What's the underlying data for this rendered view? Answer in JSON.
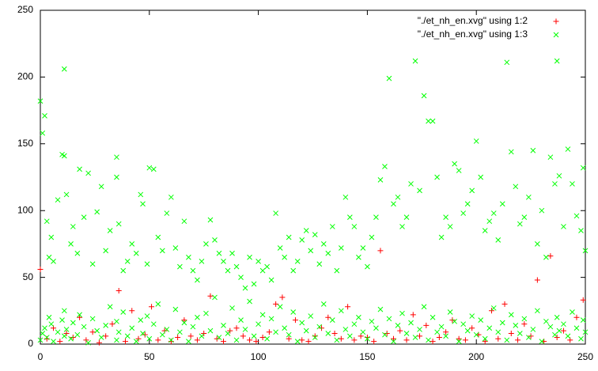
{
  "chart_data": {
    "type": "scatter",
    "xlim": [
      0,
      250
    ],
    "ylim": [
      0,
      250
    ],
    "xticks": [
      0,
      50,
      100,
      150,
      200,
      250
    ],
    "yticks": [
      0,
      50,
      100,
      150,
      200,
      250
    ],
    "legend": "top-right",
    "series": [
      {
        "name": "\"./et_nh_en.xvg\" using 1:2",
        "color": "#ff0000",
        "marker": "+",
        "x": [
          0,
          3,
          6,
          9,
          12,
          15,
          18,
          21,
          24,
          27,
          30,
          33,
          36,
          39,
          42,
          45,
          48,
          51,
          54,
          57,
          60,
          63,
          66,
          69,
          72,
          75,
          78,
          81,
          84,
          87,
          90,
          93,
          96,
          99,
          102,
          105,
          108,
          111,
          114,
          117,
          120,
          123,
          126,
          129,
          132,
          135,
          138,
          141,
          144,
          147,
          150,
          153,
          156,
          159,
          162,
          165,
          168,
          171,
          174,
          177,
          180,
          183,
          186,
          189,
          192,
          195,
          198,
          201,
          204,
          207,
          210,
          213,
          216,
          219,
          222,
          225,
          228,
          231,
          234,
          237,
          240,
          243,
          246,
          249
        ],
        "values": [
          56,
          4,
          12,
          2,
          8,
          5,
          20,
          3,
          9,
          1,
          6,
          15,
          40,
          2,
          25,
          4,
          7,
          28,
          3,
          10,
          2,
          5,
          18,
          6,
          3,
          8,
          36,
          4,
          2,
          10,
          12,
          6,
          3,
          2,
          5,
          9,
          30,
          35,
          4,
          18,
          3,
          2,
          6,
          12,
          20,
          8,
          4,
          28,
          3,
          6,
          5,
          2,
          70,
          8,
          4,
          10,
          3,
          22,
          6,
          14,
          2,
          5,
          9,
          18,
          4,
          3,
          12,
          7,
          2,
          25,
          4,
          30,
          8,
          3,
          15,
          6,
          48,
          2,
          66,
          5,
          10,
          3,
          20,
          33
        ]
      },
      {
        "name": "\"./et_nh_en.xvg\" using 1:3",
        "color": "#00ff00",
        "marker": "x",
        "x": [
          0,
          1,
          2,
          3,
          4,
          5,
          6,
          8,
          10,
          11,
          11,
          12,
          14,
          15,
          17,
          18,
          20,
          22,
          24,
          26,
          28,
          30,
          32,
          35,
          35,
          36,
          38,
          40,
          42,
          44,
          46,
          47,
          49,
          50,
          52,
          54,
          56,
          58,
          60,
          62,
          64,
          66,
          68,
          70,
          72,
          74,
          76,
          78,
          80,
          82,
          84,
          86,
          88,
          90,
          92,
          94,
          96,
          98,
          100,
          102,
          104,
          106,
          108,
          110,
          112,
          114,
          116,
          118,
          120,
          122,
          124,
          126,
          128,
          130,
          132,
          134,
          136,
          138,
          140,
          142,
          144,
          146,
          148,
          150,
          152,
          154,
          156,
          158,
          160,
          162,
          164,
          166,
          168,
          170,
          172,
          174,
          176,
          178,
          180,
          182,
          184,
          186,
          188,
          190,
          192,
          194,
          196,
          198,
          200,
          202,
          204,
          206,
          208,
          210,
          212,
          214,
          216,
          218,
          220,
          222,
          224,
          226,
          228,
          230,
          232,
          234,
          236,
          237,
          238,
          240,
          242,
          244,
          246,
          248,
          249,
          250,
          0,
          1,
          2,
          3,
          4,
          5,
          6,
          8,
          10,
          11,
          11,
          12,
          14,
          15,
          17,
          18,
          20,
          22,
          24,
          26,
          28,
          30,
          32,
          35,
          35,
          36,
          38,
          40,
          42,
          44,
          46,
          47,
          49,
          50,
          52,
          54,
          56,
          58,
          60,
          62,
          64,
          66,
          68,
          70,
          72,
          74,
          76,
          78,
          80,
          82,
          84,
          86,
          88,
          90,
          92,
          94,
          96,
          98,
          100,
          102,
          104,
          106,
          108,
          110,
          112,
          114,
          116,
          118,
          120,
          122,
          124,
          126,
          128,
          130,
          132,
          134,
          136,
          138,
          140,
          142,
          144,
          146,
          148,
          150,
          152,
          154,
          156,
          158,
          160,
          162,
          164,
          166,
          168,
          170,
          172,
          174,
          176,
          178,
          180,
          182,
          184,
          186,
          188,
          190,
          192,
          194,
          196,
          198,
          200,
          202,
          204,
          206,
          208,
          210,
          212,
          214,
          216,
          218,
          220,
          222,
          224,
          226,
          228,
          230,
          232,
          234,
          236,
          237,
          238,
          240,
          242,
          244,
          246,
          248,
          249,
          250
        ],
        "values": [
          182,
          158,
          171,
          92,
          65,
          80,
          62,
          108,
          142,
          206,
          141,
          112,
          75,
          88,
          68,
          131,
          95,
          128,
          60,
          99,
          118,
          70,
          85,
          140,
          125,
          90,
          55,
          62,
          75,
          68,
          112,
          105,
          60,
          132,
          131,
          80,
          70,
          98,
          110,
          72,
          58,
          92,
          65,
          55,
          48,
          62,
          75,
          93,
          78,
          68,
          62,
          55,
          68,
          58,
          50,
          42,
          65,
          45,
          62,
          55,
          58,
          48,
          98,
          72,
          65,
          80,
          55,
          62,
          78,
          85,
          70,
          82,
          60,
          75,
          68,
          88,
          55,
          72,
          110,
          95,
          88,
          65,
          72,
          58,
          80,
          95,
          123,
          133,
          199,
          105,
          110,
          88,
          95,
          120,
          212,
          115,
          186,
          167,
          167,
          125,
          80,
          95,
          88,
          135,
          130,
          98,
          105,
          115,
          152,
          125,
          85,
          92,
          98,
          78,
          105,
          211,
          144,
          118,
          90,
          95,
          110,
          145,
          75,
          100,
          65,
          140,
          120,
          212,
          126,
          88,
          146,
          120,
          96,
          85,
          132,
          70,
          3,
          8,
          12,
          5,
          20,
          15,
          2,
          9,
          18,
          6,
          25,
          11,
          4,
          16,
          7,
          22,
          13,
          1,
          19,
          10,
          5,
          14,
          28,
          3,
          17,
          9,
          24,
          6,
          12,
          2,
          18,
          8,
          21,
          4,
          15,
          30,
          7,
          11,
          3,
          26,
          9,
          16,
          2,
          13,
          20,
          6,
          23,
          10,
          35,
          5,
          14,
          8,
          27,
          3,
          18,
          11,
          32,
          6,
          15,
          22,
          4,
          19,
          9,
          28,
          12,
          7,
          24,
          2,
          16,
          10,
          21,
          5,
          13,
          30,
          8,
          18,
          3,
          25,
          11,
          6,
          15,
          20,
          9,
          4,
          17,
          12,
          26,
          7,
          19,
          2,
          14,
          23,
          8,
          16,
          5,
          11,
          28,
          3,
          20,
          9,
          13,
          6,
          24,
          17,
          2,
          15,
          10,
          21,
          7,
          18,
          4,
          12,
          27,
          9,
          16,
          3,
          22,
          14,
          8,
          19,
          5,
          11,
          25,
          2,
          17,
          13,
          7,
          20,
          10,
          15,
          6,
          24,
          12,
          4,
          18,
          9
        ]
      }
    ]
  }
}
